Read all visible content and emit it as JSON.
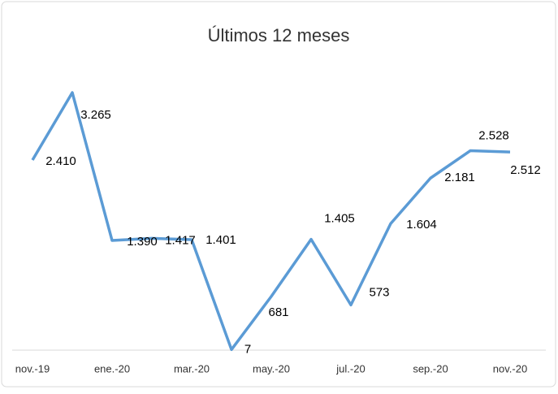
{
  "chart_data": {
    "type": "line",
    "title": "Últimos 12 meses",
    "categories": [
      "nov.-19",
      null,
      "ene.-20",
      null,
      "mar.-20",
      null,
      "may.-20",
      null,
      "jul.-20",
      null,
      "sep.-20",
      null,
      "nov.-20"
    ],
    "series": [
      {
        "name": "Últimos 12 meses",
        "color": "#5b9bd5",
        "values": [
          2410,
          3265,
          1390,
          1417,
          1401,
          7,
          681,
          1405,
          573,
          1604,
          2181,
          2528,
          2512
        ],
        "value_labels": [
          "2.410",
          "3.265",
          "1.390",
          "1.417",
          "1.401",
          "7",
          "681",
          "1.405",
          "573",
          "1.604",
          "2.181",
          "2.528",
          "2.512"
        ]
      }
    ]
  }
}
